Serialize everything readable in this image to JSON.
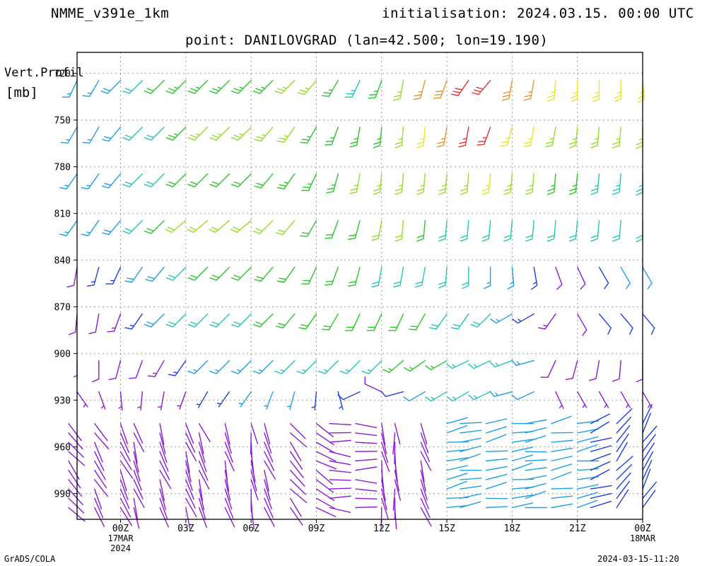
{
  "header": {
    "model": "NMME_v391e_1km",
    "init": "initialisation: 2024.03.15. 00:00 UTC",
    "point": "point: DANILOVGRAD (lan=42.500; lon=19.190)"
  },
  "footer": {
    "left": "GrADS/COLA",
    "right": "2024-03-15-11:20"
  },
  "colors": {
    "gridline": "#9a9a9a",
    "frame": "#000000",
    "palette": [
      "#8c1ad6",
      "#2040e0",
      "#1ea0e6",
      "#20c8b4",
      "#28c828",
      "#96dc28",
      "#e6e628",
      "#e69628",
      "#e63232"
    ]
  },
  "chart_data": {
    "type": "wind_barb_profile",
    "ylabel": "Vert.Profil",
    "yunit": "[mb]",
    "y_ticks": [
      720,
      750,
      780,
      810,
      840,
      870,
      900,
      930,
      960,
      990
    ],
    "ylim": [
      1000,
      700
    ],
    "x_ticks": [
      {
        "label": "00Z",
        "sub": [
          "17MAR",
          "2024"
        ]
      },
      {
        "label": "03Z",
        "sub": []
      },
      {
        "label": "06Z",
        "sub": []
      },
      {
        "label": "09Z",
        "sub": []
      },
      {
        "label": "12Z",
        "sub": []
      },
      {
        "label": "15Z",
        "sub": []
      },
      {
        "label": "18Z",
        "sub": []
      },
      {
        "label": "21Z",
        "sub": []
      },
      {
        "label": "00Z",
        "sub": [
          "18MAR"
        ]
      }
    ],
    "x_range_hours": [
      -2,
      24
    ],
    "grid": true,
    "barb_hours": [
      -2,
      -1,
      0,
      1,
      2,
      3,
      4,
      5,
      6,
      7,
      8,
      9,
      10,
      11,
      12,
      13,
      14,
      15,
      16,
      17,
      18,
      19,
      20,
      21,
      22,
      23,
      24
    ],
    "upper_levels": [
      {
        "level": 720,
        "dir": [
          205,
          210,
          225,
          225,
          225,
          225,
          225,
          225,
          225,
          225,
          225,
          220,
          210,
          205,
          200,
          190,
          195,
          200,
          215,
          220,
          190,
          190,
          185,
          180,
          180,
          180,
          175
        ],
        "speed": [
          15,
          15,
          20,
          20,
          20,
          25,
          25,
          25,
          25,
          25,
          25,
          25,
          25,
          25,
          25,
          25,
          25,
          30,
          30,
          30,
          30,
          25,
          25,
          25,
          25,
          25,
          25
        ],
        "color": [
          2,
          2,
          2,
          3,
          4,
          4,
          4,
          4,
          4,
          4,
          5,
          5,
          4,
          3,
          4,
          5,
          7,
          7,
          8,
          8,
          7,
          7,
          6,
          6,
          6,
          6,
          6
        ]
      },
      {
        "level": 750,
        "dir": [
          210,
          210,
          220,
          225,
          225,
          225,
          225,
          225,
          225,
          220,
          215,
          210,
          200,
          190,
          185,
          185,
          185,
          190,
          190,
          200,
          195,
          190,
          190,
          185,
          185,
          185,
          180
        ],
        "speed": [
          15,
          15,
          20,
          20,
          20,
          25,
          25,
          25,
          25,
          25,
          25,
          25,
          25,
          25,
          25,
          25,
          25,
          25,
          25,
          25,
          25,
          25,
          25,
          25,
          25,
          25,
          25
        ],
        "color": [
          2,
          2,
          2,
          3,
          3,
          4,
          5,
          5,
          5,
          5,
          5,
          4,
          4,
          4,
          4,
          5,
          6,
          7,
          8,
          8,
          6,
          6,
          5,
          5,
          5,
          5,
          5
        ]
      },
      {
        "level": 780,
        "dir": [
          215,
          215,
          220,
          225,
          225,
          225,
          225,
          225,
          225,
          220,
          215,
          205,
          195,
          190,
          185,
          185,
          185,
          185,
          185,
          185,
          185,
          185,
          185,
          185,
          185,
          185,
          180
        ],
        "speed": [
          15,
          15,
          20,
          20,
          20,
          20,
          20,
          20,
          20,
          20,
          25,
          25,
          25,
          25,
          25,
          25,
          25,
          25,
          25,
          25,
          25,
          25,
          25,
          25,
          25,
          25,
          25
        ],
        "color": [
          2,
          2,
          2,
          3,
          3,
          4,
          4,
          4,
          4,
          4,
          4,
          4,
          4,
          5,
          5,
          5,
          5,
          5,
          5,
          6,
          5,
          5,
          4,
          4,
          3,
          3,
          3
        ]
      },
      {
        "level": 810,
        "dir": [
          215,
          215,
          220,
          225,
          225,
          230,
          230,
          230,
          230,
          225,
          220,
          210,
          200,
          195,
          190,
          185,
          185,
          185,
          185,
          185,
          185,
          185,
          185,
          185,
          185,
          185,
          180
        ],
        "speed": [
          15,
          15,
          20,
          20,
          20,
          20,
          20,
          20,
          20,
          20,
          20,
          20,
          20,
          20,
          20,
          20,
          20,
          20,
          20,
          20,
          20,
          20,
          20,
          20,
          20,
          20,
          20
        ],
        "color": [
          2,
          2,
          2,
          3,
          4,
          5,
          5,
          5,
          5,
          5,
          5,
          4,
          4,
          4,
          5,
          5,
          4,
          3,
          3,
          3,
          3,
          3,
          3,
          3,
          3,
          3,
          3
        ]
      },
      {
        "level": 840,
        "dir": [
          190,
          195,
          205,
          215,
          220,
          225,
          225,
          225,
          225,
          220,
          215,
          205,
          200,
          195,
          190,
          190,
          190,
          185,
          180,
          180,
          175,
          170,
          160,
          155,
          150,
          150,
          150
        ],
        "speed": [
          10,
          15,
          15,
          20,
          20,
          20,
          20,
          20,
          20,
          20,
          20,
          20,
          20,
          20,
          20,
          20,
          20,
          20,
          20,
          15,
          15,
          15,
          10,
          10,
          10,
          10,
          10
        ],
        "color": [
          0,
          1,
          1,
          2,
          2,
          3,
          4,
          4,
          4,
          4,
          4,
          4,
          4,
          4,
          3,
          3,
          3,
          3,
          3,
          2,
          2,
          1,
          0,
          0,
          1,
          2,
          2
        ]
      },
      {
        "level": 870,
        "dir": [
          185,
          190,
          200,
          215,
          225,
          225,
          225,
          225,
          225,
          225,
          220,
          215,
          210,
          205,
          205,
          205,
          210,
          215,
          215,
          225,
          240,
          240,
          215,
          150,
          140,
          140,
          140
        ],
        "speed": [
          10,
          10,
          15,
          15,
          20,
          20,
          20,
          20,
          20,
          20,
          20,
          20,
          20,
          20,
          20,
          20,
          20,
          20,
          20,
          20,
          15,
          15,
          15,
          10,
          10,
          10,
          10
        ],
        "color": [
          0,
          0,
          0,
          1,
          2,
          3,
          3,
          3,
          3,
          4,
          4,
          4,
          4,
          4,
          4,
          4,
          4,
          3,
          3,
          3,
          2,
          1,
          0,
          0,
          1,
          1,
          1
        ]
      },
      {
        "level": 900,
        "dir": [
          180,
          180,
          195,
          200,
          210,
          215,
          225,
          225,
          225,
          225,
          225,
          225,
          225,
          225,
          225,
          230,
          235,
          240,
          245,
          245,
          250,
          255,
          205,
          195,
          190,
          185,
          180
        ],
        "speed": [
          5,
          10,
          10,
          10,
          15,
          15,
          15,
          15,
          15,
          15,
          15,
          15,
          15,
          15,
          15,
          15,
          15,
          15,
          15,
          15,
          15,
          15,
          10,
          10,
          10,
          10,
          10
        ],
        "color": [
          0,
          0,
          0,
          0,
          0,
          1,
          2,
          2,
          2,
          2,
          3,
          3,
          3,
          3,
          3,
          4,
          4,
          4,
          3,
          3,
          3,
          2,
          0,
          0,
          0,
          0,
          0
        ]
      },
      {
        "level": 920,
        "dir": [
          145,
          160,
          175,
          185,
          190,
          200,
          210,
          215,
          215,
          200,
          195,
          185,
          165,
          245,
          295,
          255,
          240,
          240,
          240,
          245,
          255,
          245,
          155,
          150,
          150,
          150,
          150
        ],
        "speed": [
          5,
          5,
          5,
          5,
          5,
          5,
          5,
          5,
          5,
          5,
          5,
          5,
          5,
          10,
          10,
          10,
          10,
          15,
          15,
          15,
          15,
          10,
          5,
          5,
          5,
          5,
          5
        ],
        "color": [
          0,
          0,
          0,
          0,
          0,
          0,
          1,
          1,
          2,
          2,
          2,
          1,
          1,
          1,
          0,
          1,
          2,
          3,
          3,
          3,
          2,
          2,
          0,
          0,
          0,
          0,
          0
        ]
      }
    ],
    "surface_layer": {
      "pressure_range": [
        940,
        1000
      ],
      "direction_trend": [
        140,
        150,
        155,
        160,
        160,
        160,
        160,
        165,
        170,
        160,
        140,
        120,
        95,
        90,
        170,
        175,
        160,
        80,
        80,
        80,
        80,
        80,
        80,
        80,
        70,
        40,
        30
      ],
      "color_trend": [
        0,
        0,
        0,
        0,
        0,
        0,
        0,
        0,
        0,
        0,
        0,
        0,
        0,
        0,
        0,
        0,
        0,
        2,
        2,
        2,
        2,
        2,
        2,
        2,
        1,
        1,
        1
      ]
    }
  }
}
